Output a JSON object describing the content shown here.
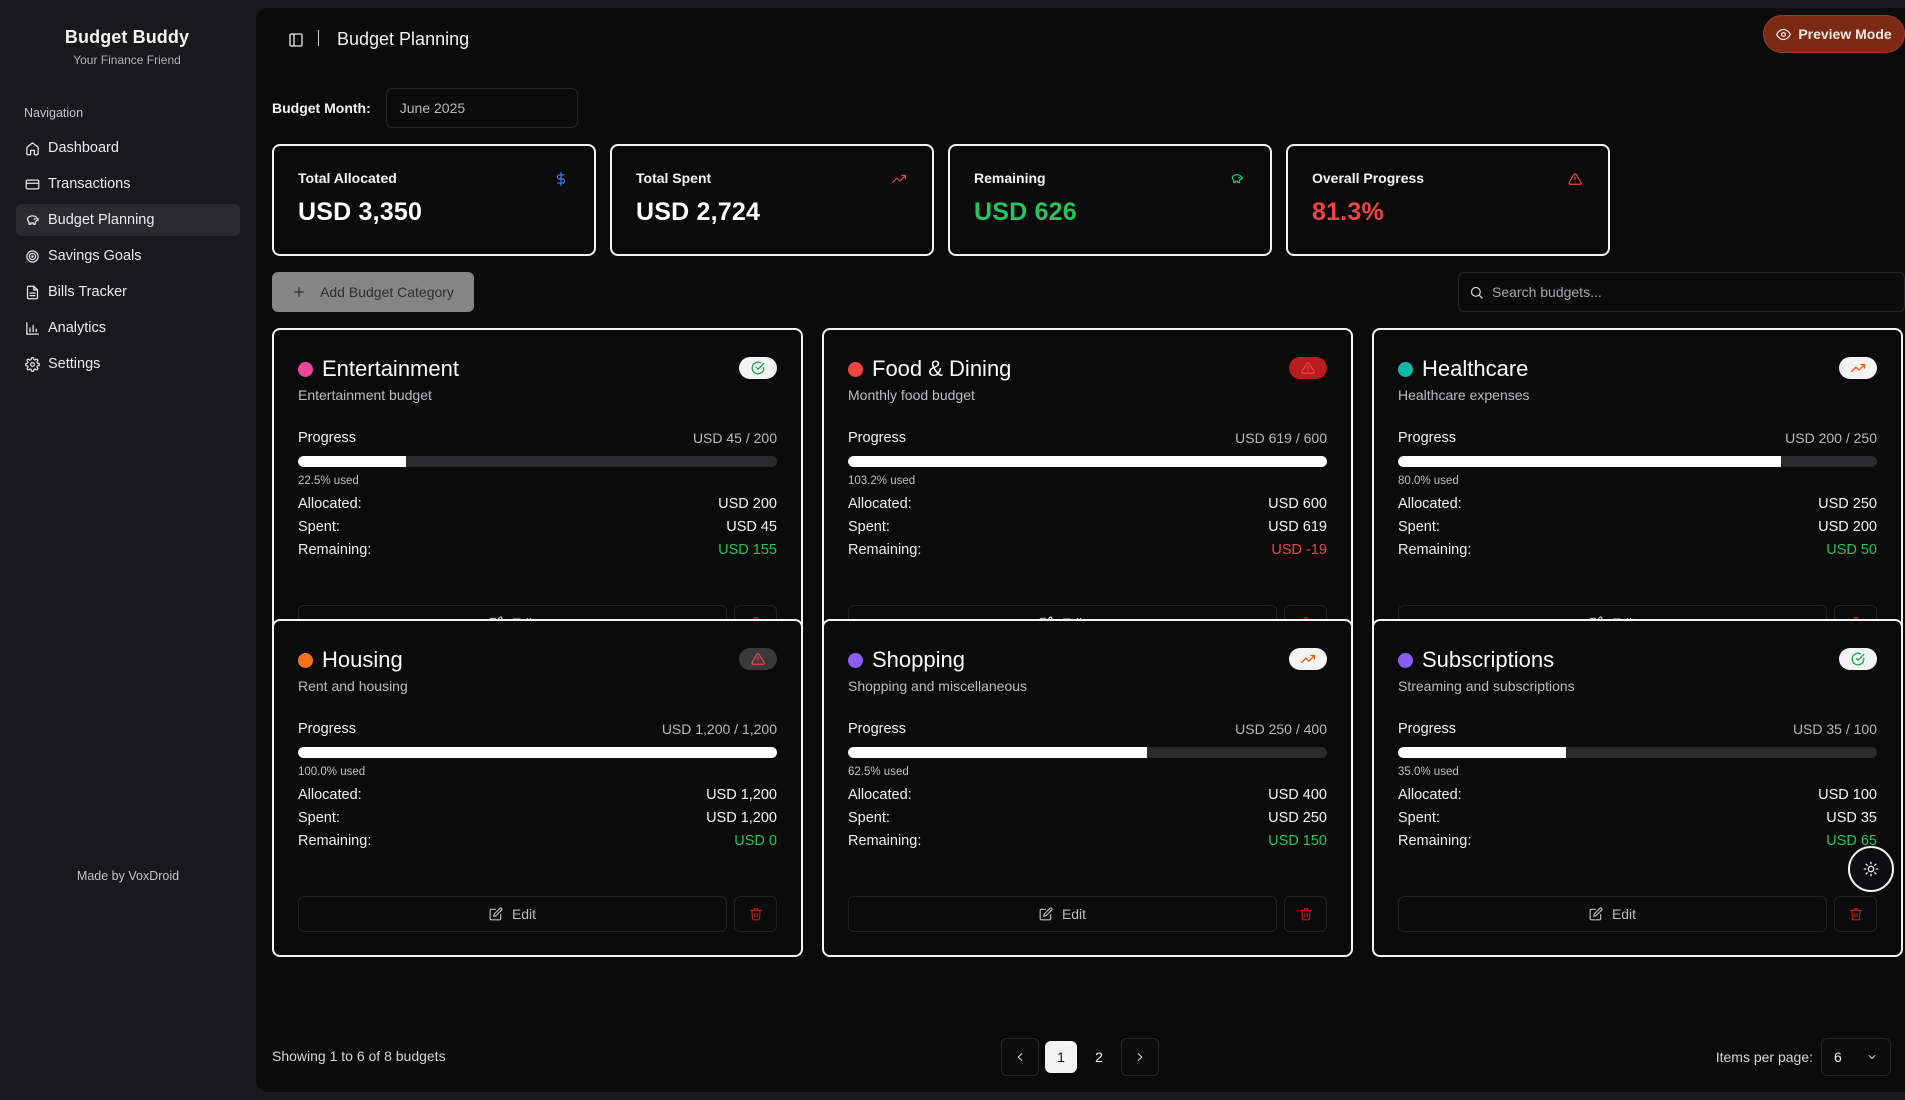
{
  "brand": {
    "title": "Budget Buddy",
    "subtitle": "Your Finance Friend"
  },
  "sidebar": {
    "section_label": "Navigation",
    "items": [
      {
        "label": "Dashboard",
        "icon": "home-icon"
      },
      {
        "label": "Transactions",
        "icon": "credit-card-icon"
      },
      {
        "label": "Budget Planning",
        "icon": "piggy-bank-icon",
        "active": true
      },
      {
        "label": "Savings Goals",
        "icon": "target-icon"
      },
      {
        "label": "Bills Tracker",
        "icon": "file-text-icon"
      },
      {
        "label": "Analytics",
        "icon": "bar-chart-icon"
      },
      {
        "label": "Settings",
        "icon": "gear-icon"
      }
    ],
    "footer": "Made by VoxDroid"
  },
  "header": {
    "title": "Budget Planning",
    "preview_label": "Preview Mode"
  },
  "month": {
    "label": "Budget Month:",
    "value": "June 2025"
  },
  "stats": [
    {
      "label": "Total Allocated",
      "value": "USD 3,350",
      "color": "#ffffff",
      "icon": "dollar-icon",
      "icon_color": "#3b82f6"
    },
    {
      "label": "Total Spent",
      "value": "USD 2,724",
      "color": "#ffffff",
      "icon": "trending-up-icon",
      "icon_color": "#ef4444"
    },
    {
      "label": "Remaining",
      "value": "USD 626",
      "color": "#22c55e",
      "icon": "piggy-bank-icon",
      "icon_color": "#22c55e"
    },
    {
      "label": "Overall Progress",
      "value": "81.3%",
      "color": "#ef4444",
      "icon": "alert-triangle-icon",
      "icon_color": "#ef4444"
    }
  ],
  "actions": {
    "add_label": "Add Budget Category",
    "search_placeholder": "Search budgets..."
  },
  "budgets": [
    {
      "name": "Entertainment",
      "description": "Entertainment budget",
      "dot_color": "#ec4899",
      "status": "ok",
      "progress_amount": "USD 45 / 200",
      "progress": 0.225,
      "used": "22.5% used",
      "allocated": "USD 200",
      "spent": "USD 45",
      "remaining": "USD 155",
      "remaining_tone": "green"
    },
    {
      "name": "Food & Dining",
      "description": "Monthly food budget",
      "dot_color": "#ef4444",
      "status": "over",
      "progress_amount": "USD 619 / 600",
      "progress": 1.0,
      "used": "103.2% used",
      "allocated": "USD 600",
      "spent": "USD 619",
      "remaining": "USD -19",
      "remaining_tone": "red"
    },
    {
      "name": "Healthcare",
      "description": "Healthcare expenses",
      "dot_color": "#14b8a6",
      "status": "warning",
      "progress_amount": "USD 200 / 250",
      "progress": 0.8,
      "used": "80.0% used",
      "allocated": "USD 250",
      "spent": "USD 200",
      "remaining": "USD 50",
      "remaining_tone": "green"
    },
    {
      "name": "Housing",
      "description": "Rent and housing",
      "dot_color": "#f97316",
      "status": "limit",
      "progress_amount": "USD 1,200 / 1,200",
      "progress": 1.0,
      "used": "100.0% used",
      "allocated": "USD 1,200",
      "spent": "USD 1,200",
      "remaining": "USD 0",
      "remaining_tone": "green"
    },
    {
      "name": "Shopping",
      "description": "Shopping and miscellaneous",
      "dot_color": "#8b5cf6",
      "status": "warning",
      "progress_amount": "USD 250 / 400",
      "progress": 0.625,
      "used": "62.5% used",
      "allocated": "USD 400",
      "spent": "USD 250",
      "remaining": "USD 150",
      "remaining_tone": "green"
    },
    {
      "name": "Subscriptions",
      "description": "Streaming and subscriptions",
      "dot_color": "#8b5cf6",
      "status": "ok",
      "progress_amount": "USD 35 / 100",
      "progress": 0.35,
      "used": "35.0% used",
      "allocated": "USD 100",
      "spent": "USD 35",
      "remaining": "USD 65",
      "remaining_tone": "green"
    }
  ],
  "card_labels": {
    "progress": "Progress",
    "allocated": "Allocated:",
    "spent": "Spent:",
    "remaining": "Remaining:",
    "edit": "Edit"
  },
  "pagination": {
    "summary": "Showing 1 to 6 of 8 budgets",
    "pages": [
      "1",
      "2"
    ],
    "current": "1"
  },
  "per_page": {
    "label": "Items per page:",
    "value": "6"
  }
}
